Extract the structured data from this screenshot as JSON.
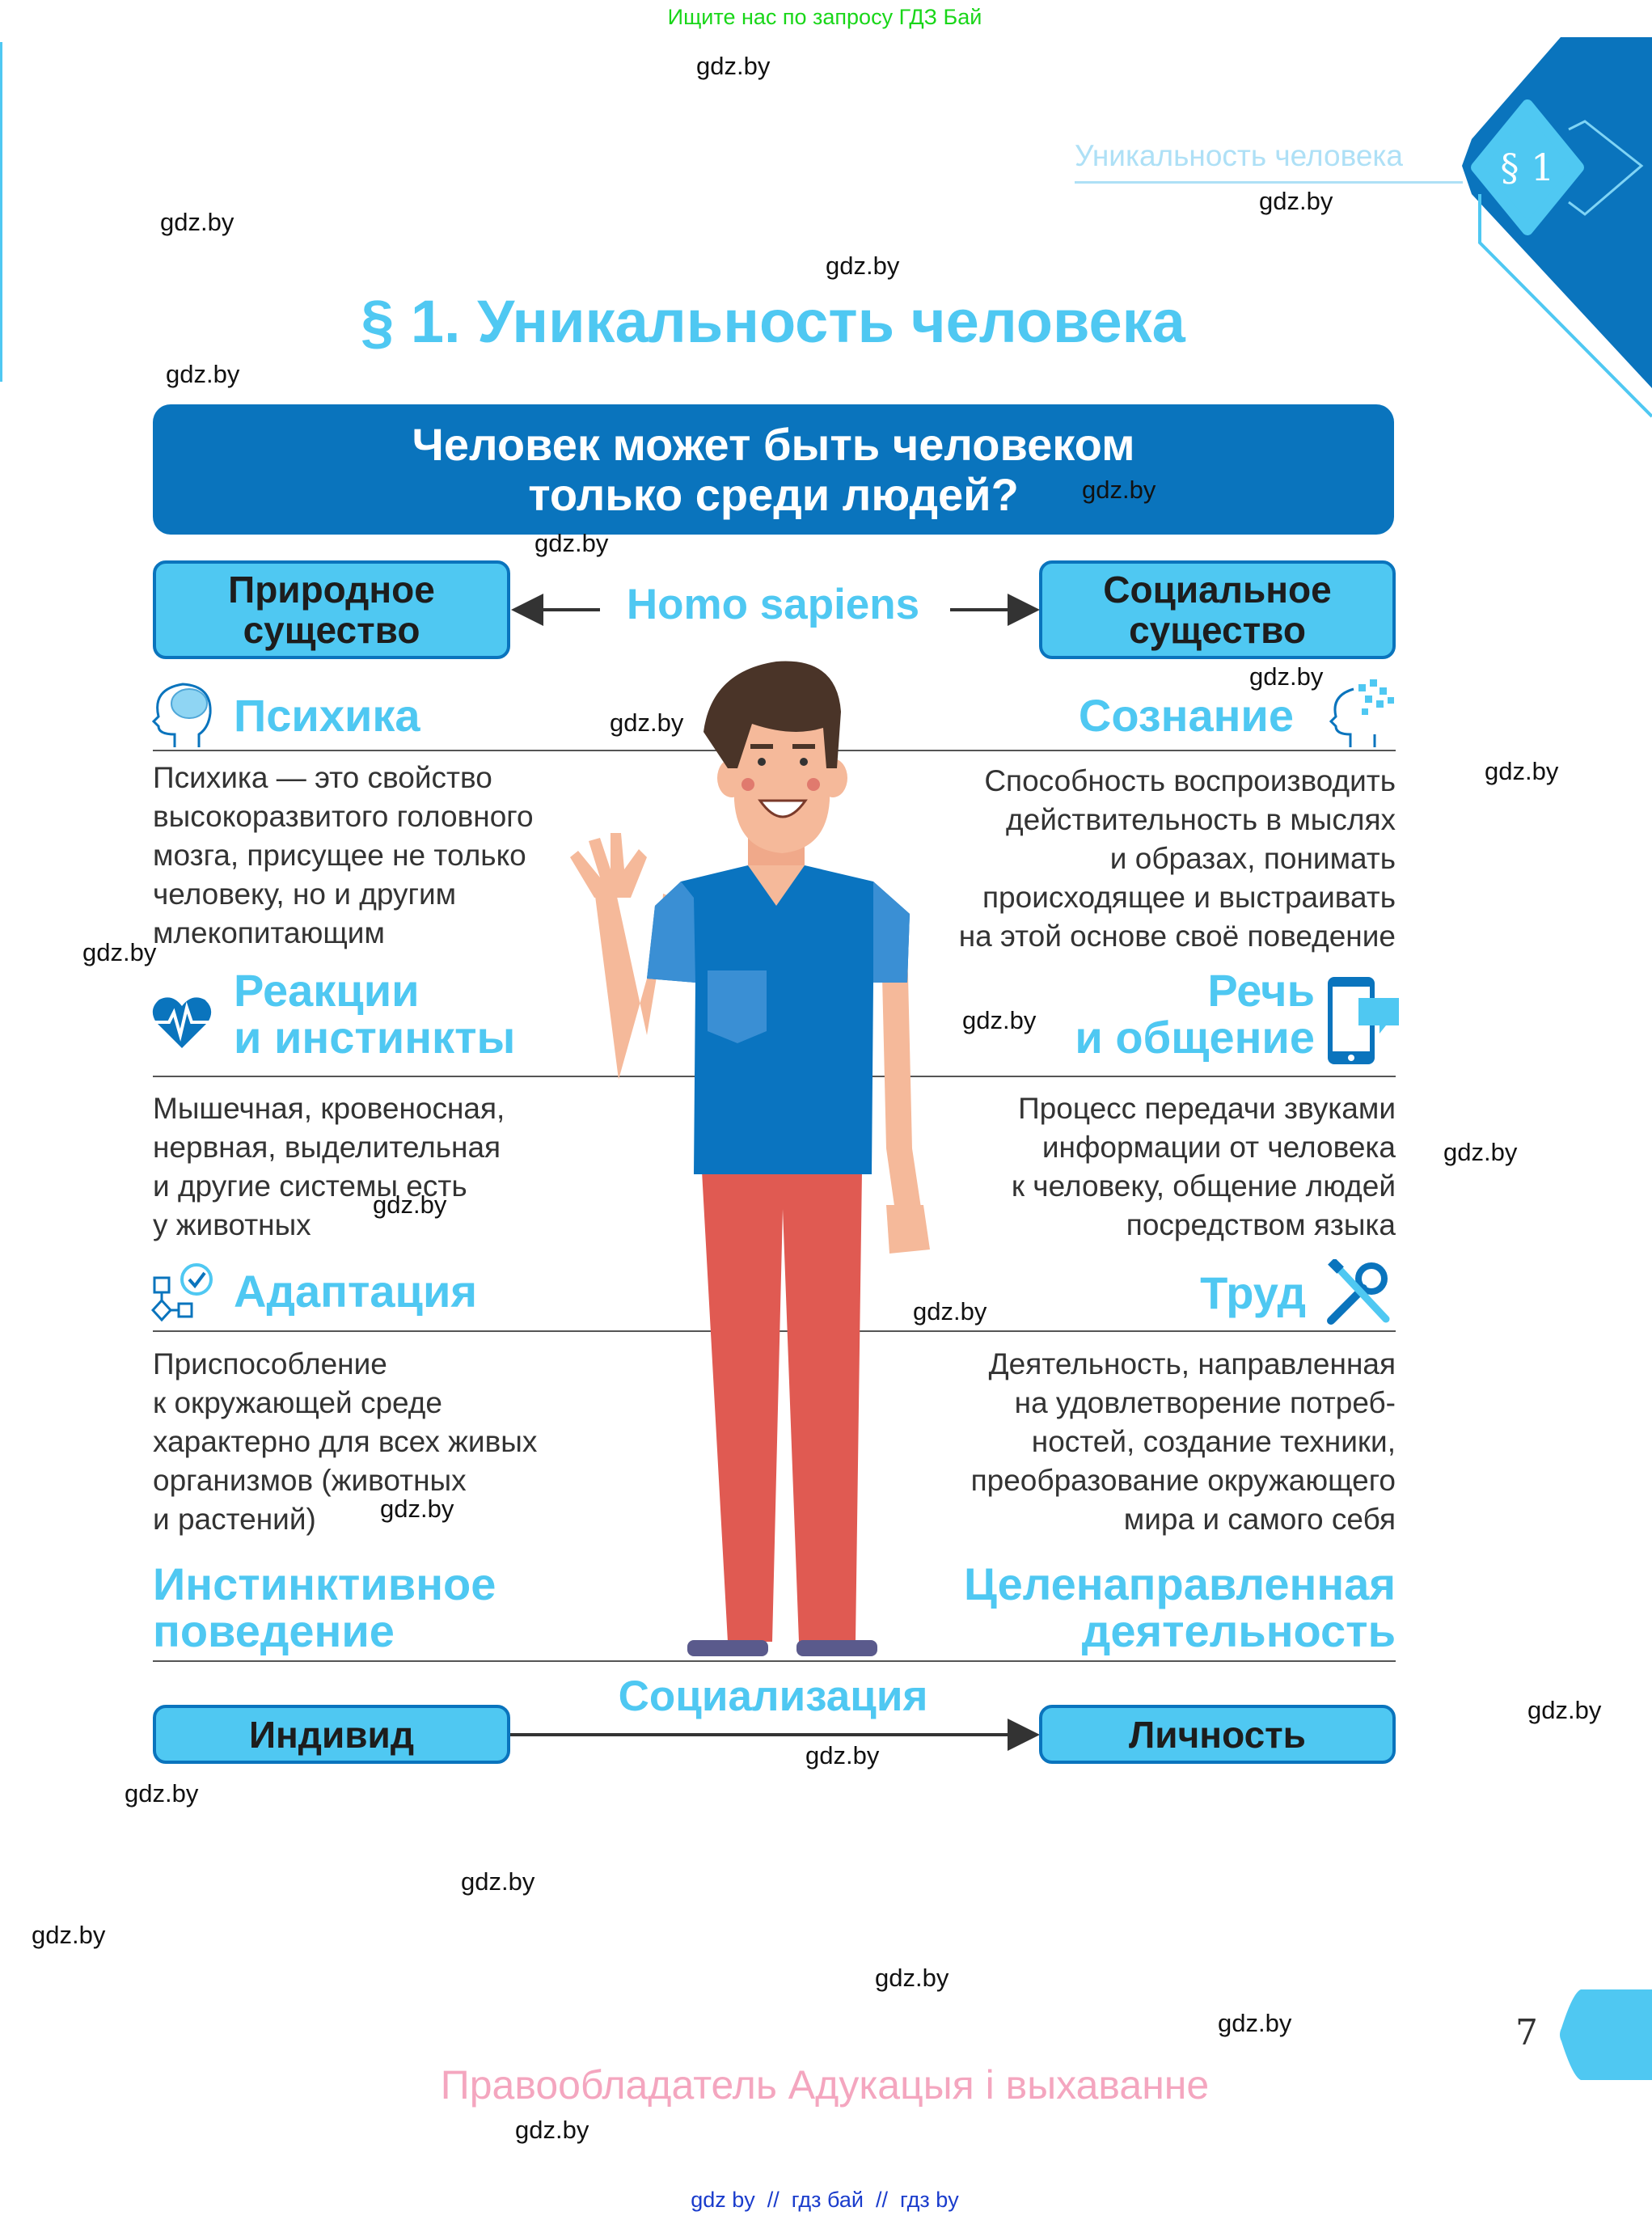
{
  "top_banner": "Ищите нас по запросу ГДЗ Бай",
  "running_header": {
    "title": "Уникальность человека",
    "badge": "§ 1"
  },
  "page_title": "§ 1. Уникальность человека",
  "question": {
    "line1": "Человек может быть человеком",
    "line2": "только среди людей?"
  },
  "homo": {
    "left_box": [
      "Природное",
      "существо"
    ],
    "center": "Homo sapiens",
    "right_box": [
      "Социальное",
      "существо"
    ]
  },
  "left": [
    {
      "title": [
        "Психика"
      ],
      "icon": "head-brain-icon",
      "text": [
        "Психика — это свойство",
        "высокоразвитого головного",
        "мозга, присущее не только",
        "человеку, но и другим",
        "млекопитающим"
      ]
    },
    {
      "title": [
        "Реакции",
        "и инстинкты"
      ],
      "icon": "heart-pulse-icon",
      "text": [
        "Мышечная, кровеносная,",
        "нервная, выделительная",
        "и другие системы есть",
        "у животных"
      ]
    },
    {
      "title": [
        "Адаптация"
      ],
      "icon": "flowchart-check-icon",
      "text": [
        "Приспособление",
        "к окружающей среде",
        "характерно для всех живых",
        "организмов (животных",
        "и растений)"
      ]
    }
  ],
  "right": [
    {
      "title": [
        "Сознание"
      ],
      "icon": "head-puzzle-icon",
      "text": [
        "Способность воспроизводить",
        "действительность в мыслях",
        "и образах, понимать",
        "происходящее и выстраивать",
        "на этой основе своё поведение"
      ]
    },
    {
      "title": [
        "Речь",
        "и общение"
      ],
      "icon": "phone-chat-icon",
      "text": [
        "Процесс передачи звуками",
        "информации от человека",
        "к человеку, общение людей",
        "посредством языка"
      ]
    },
    {
      "title": [
        "Труд"
      ],
      "icon": "tools-icon",
      "text": [
        "Деятельность, направленная",
        "на удовлетворение потреб-",
        "ностей, создание техники,",
        "преобразование окружающего",
        "мира и самого себя"
      ]
    }
  ],
  "bottom": {
    "left_title": [
      "Инстинктивное",
      "поведение"
    ],
    "right_title": [
      "Целенаправленная",
      "деятельность"
    ],
    "center": "Социализация",
    "left_box": "Индивид",
    "right_box": "Личность"
  },
  "page_number": "7",
  "rights": "Правообладатель Адукацыя і выхаванне",
  "watermark": "gdz.by",
  "bottom_links": "gdz by  //  гдз бай  //  гдз by",
  "colors": {
    "light_blue": "#4fc8f2",
    "dark_blue": "#0a74bd",
    "rights_pink": "#f4a6bf",
    "search_green": "#19d619"
  }
}
